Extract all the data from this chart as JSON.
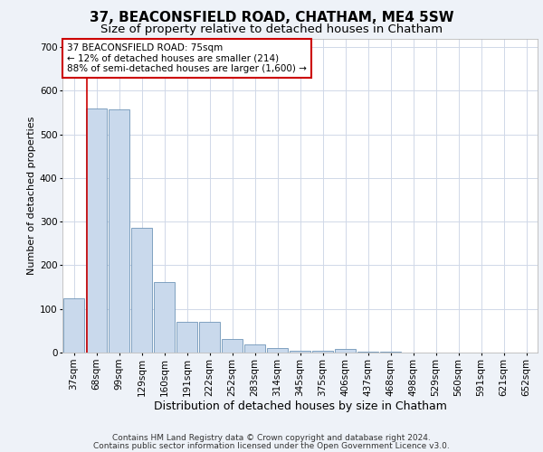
{
  "title1": "37, BEACONSFIELD ROAD, CHATHAM, ME4 5SW",
  "title2": "Size of property relative to detached houses in Chatham",
  "xlabel": "Distribution of detached houses by size in Chatham",
  "ylabel": "Number of detached properties",
  "categories": [
    "37sqm",
    "68sqm",
    "99sqm",
    "129sqm",
    "160sqm",
    "191sqm",
    "222sqm",
    "252sqm",
    "283sqm",
    "314sqm",
    "345sqm",
    "375sqm",
    "406sqm",
    "437sqm",
    "468sqm",
    "498sqm",
    "529sqm",
    "560sqm",
    "591sqm",
    "621sqm",
    "652sqm"
  ],
  "values": [
    125,
    560,
    558,
    285,
    162,
    70,
    70,
    32,
    18,
    10,
    5,
    5,
    8,
    3,
    3,
    0,
    0,
    0,
    0,
    0,
    0
  ],
  "bar_color": "#c9d9ec",
  "bar_edge_color": "#7096b8",
  "grid_color": "#d0d8e8",
  "background_color": "#eef2f8",
  "plot_bg_color": "#ffffff",
  "ref_line_color": "#cc0000",
  "annotation_line1": "37 BEACONSFIELD ROAD: 75sqm",
  "annotation_line2": "← 12% of detached houses are smaller (214)",
  "annotation_line3": "88% of semi-detached houses are larger (1,600) →",
  "footer1": "Contains HM Land Registry data © Crown copyright and database right 2024.",
  "footer2": "Contains public sector information licensed under the Open Government Licence v3.0.",
  "ylim": [
    0,
    720
  ],
  "yticks": [
    0,
    100,
    200,
    300,
    400,
    500,
    600,
    700
  ],
  "title1_fontsize": 11,
  "title2_fontsize": 9.5,
  "xlabel_fontsize": 9,
  "ylabel_fontsize": 8,
  "tick_fontsize": 7.5,
  "annotation_fontsize": 7.5,
  "footer_fontsize": 6.5
}
